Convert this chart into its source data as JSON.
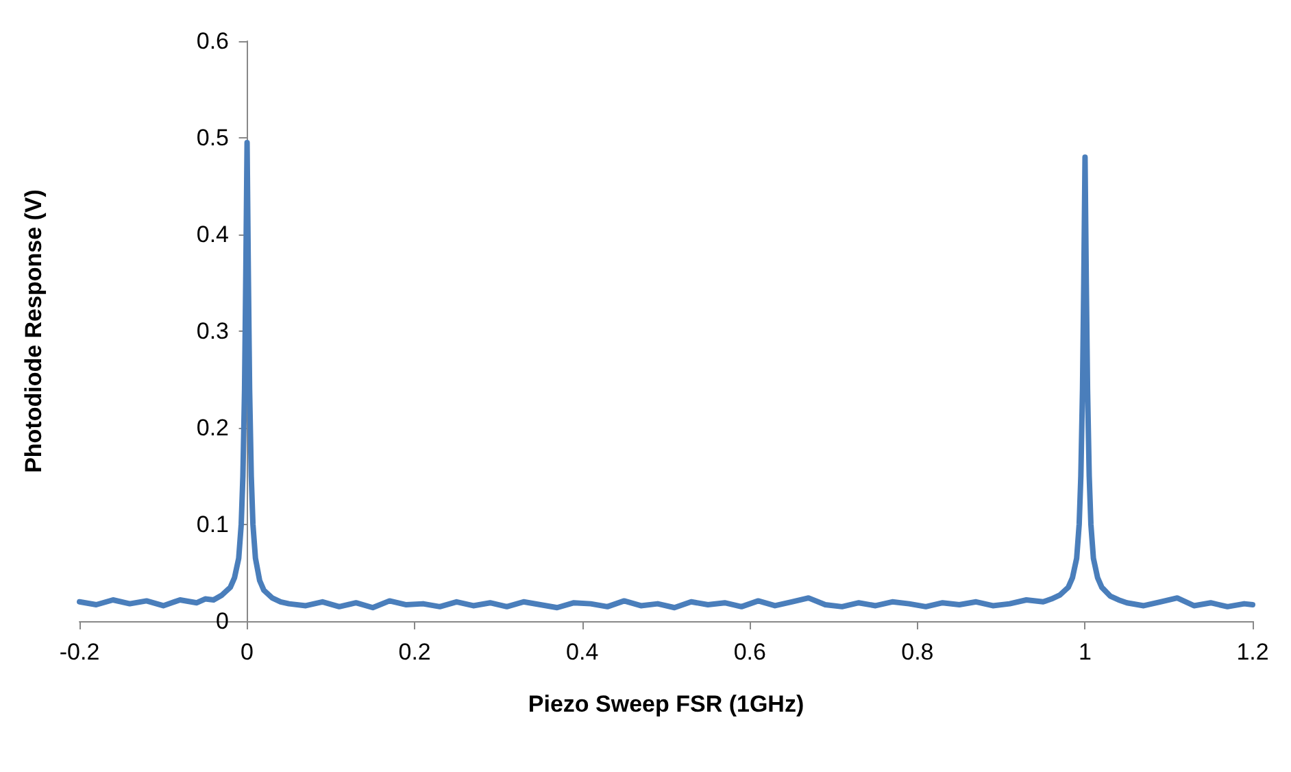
{
  "chart_data": {
    "type": "line",
    "xlabel": "Piezo Sweep FSR (1GHz)",
    "ylabel": "Photodiode Response (V)",
    "xlim": [
      -0.2,
      1.2
    ],
    "xticks": [
      -0.2,
      0,
      0.2,
      0.4,
      0.6,
      0.8,
      1,
      1.2
    ],
    "ylim": [
      0,
      0.6
    ],
    "yticks": [
      0,
      0.1,
      0.2,
      0.3,
      0.4,
      0.5,
      0.6
    ],
    "marker": "none",
    "line_style": "solid",
    "series": [
      {
        "color": "#4a7ebb",
        "x": [
          -0.2,
          -0.18,
          -0.16,
          -0.14,
          -0.12,
          -0.1,
          -0.08,
          -0.06,
          -0.05,
          -0.04,
          -0.03,
          -0.02,
          -0.015,
          -0.01,
          -0.007,
          -0.005,
          -0.003,
          -0.0015,
          0,
          0.0015,
          0.003,
          0.005,
          0.007,
          0.01,
          0.015,
          0.02,
          0.03,
          0.04,
          0.05,
          0.07,
          0.09,
          0.11,
          0.13,
          0.15,
          0.17,
          0.19,
          0.21,
          0.23,
          0.25,
          0.27,
          0.29,
          0.31,
          0.33,
          0.35,
          0.37,
          0.39,
          0.41,
          0.43,
          0.45,
          0.47,
          0.49,
          0.51,
          0.53,
          0.55,
          0.57,
          0.59,
          0.61,
          0.63,
          0.65,
          0.67,
          0.69,
          0.71,
          0.73,
          0.75,
          0.77,
          0.79,
          0.81,
          0.83,
          0.85,
          0.87,
          0.89,
          0.91,
          0.93,
          0.95,
          0.96,
          0.97,
          0.98,
          0.985,
          0.99,
          0.993,
          0.995,
          0.997,
          0.9985,
          1,
          1.0015,
          1.003,
          1.005,
          1.007,
          1.01,
          1.015,
          1.02,
          1.03,
          1.04,
          1.05,
          1.07,
          1.09,
          1.11,
          1.13,
          1.15,
          1.17,
          1.19,
          1.2
        ],
        "values": [
          0.02,
          0.017,
          0.022,
          0.018,
          0.021,
          0.016,
          0.022,
          0.019,
          0.023,
          0.022,
          0.027,
          0.035,
          0.045,
          0.065,
          0.1,
          0.15,
          0.24,
          0.36,
          0.495,
          0.36,
          0.24,
          0.15,
          0.1,
          0.065,
          0.042,
          0.032,
          0.024,
          0.02,
          0.018,
          0.016,
          0.02,
          0.015,
          0.019,
          0.014,
          0.021,
          0.017,
          0.018,
          0.015,
          0.02,
          0.016,
          0.019,
          0.015,
          0.02,
          0.017,
          0.014,
          0.019,
          0.018,
          0.015,
          0.021,
          0.016,
          0.018,
          0.014,
          0.02,
          0.017,
          0.019,
          0.015,
          0.021,
          0.016,
          0.02,
          0.024,
          0.017,
          0.015,
          0.019,
          0.016,
          0.02,
          0.018,
          0.015,
          0.019,
          0.017,
          0.02,
          0.016,
          0.018,
          0.022,
          0.02,
          0.023,
          0.027,
          0.035,
          0.045,
          0.065,
          0.1,
          0.15,
          0.24,
          0.35,
          0.48,
          0.35,
          0.24,
          0.15,
          0.1,
          0.065,
          0.045,
          0.035,
          0.026,
          0.022,
          0.019,
          0.016,
          0.02,
          0.024,
          0.016,
          0.019,
          0.015,
          0.018,
          0.017
        ]
      }
    ]
  }
}
